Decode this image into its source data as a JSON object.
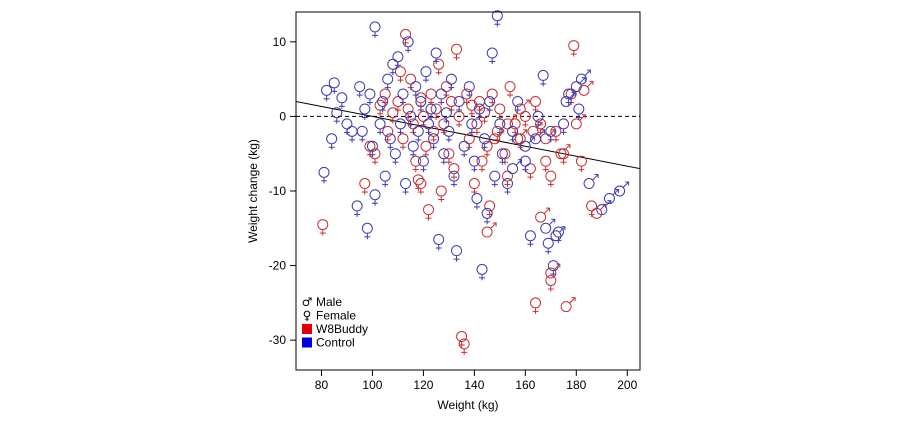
{
  "chart_data": {
    "type": "scatter",
    "xlabel": "Weight (kg)",
    "ylabel": "Weight change (kg)",
    "xlim": [
      70,
      205
    ],
    "ylim": [
      -34,
      14
    ],
    "x_ticks": [
      80,
      100,
      120,
      140,
      160,
      180,
      200
    ],
    "y_ticks": [
      10,
      0,
      -10,
      -20,
      -30
    ],
    "reference_line": {
      "y": 0,
      "style": "dashed"
    },
    "trend_line": {
      "points": [
        [
          70,
          2.0
        ],
        [
          205,
          -7.0
        ]
      ]
    },
    "legend": {
      "placement": "bottom-left",
      "entries": [
        {
          "label": "Male",
          "kind": "symbol",
          "symbol": "♂"
        },
        {
          "label": "Female",
          "kind": "symbol",
          "symbol": "♀"
        },
        {
          "label": "W8Buddy",
          "kind": "color",
          "color": "#e00000"
        },
        {
          "label": "Control",
          "kind": "color",
          "color": "#0000e0"
        }
      ]
    },
    "colors": {
      "W8Buddy": "#c83030",
      "Control": "#3c3cb4",
      "W8Buddy_swatch": "#e00000",
      "Control_swatch": "#0000e0"
    },
    "series": [
      {
        "name": "W8Buddy",
        "points": [
          {
            "x": 80.5,
            "y": -14.5,
            "sex": "F"
          },
          {
            "x": 97,
            "y": -9,
            "sex": "F"
          },
          {
            "x": 99,
            "y": -4,
            "sex": "F"
          },
          {
            "x": 103,
            "y": 1.5,
            "sex": "F"
          },
          {
            "x": 105,
            "y": 3,
            "sex": "F"
          },
          {
            "x": 106,
            "y": -2,
            "sex": "F"
          },
          {
            "x": 108,
            "y": 0.5,
            "sex": "F"
          },
          {
            "x": 110,
            "y": 2,
            "sex": "F"
          },
          {
            "x": 112,
            "y": -3,
            "sex": "F"
          },
          {
            "x": 113,
            "y": 11,
            "sex": "F"
          },
          {
            "x": 114,
            "y": 1,
            "sex": "F"
          },
          {
            "x": 115,
            "y": 5,
            "sex": "F"
          },
          {
            "x": 116,
            "y": -1,
            "sex": "F"
          },
          {
            "x": 117,
            "y": -6,
            "sex": "F"
          },
          {
            "x": 118,
            "y": -8.5,
            "sex": "F"
          },
          {
            "x": 119,
            "y": 2.5,
            "sex": "F"
          },
          {
            "x": 120,
            "y": 0,
            "sex": "F"
          },
          {
            "x": 121,
            "y": -4,
            "sex": "F"
          },
          {
            "x": 122,
            "y": -12.5,
            "sex": "F"
          },
          {
            "x": 123,
            "y": 3,
            "sex": "F"
          },
          {
            "x": 124,
            "y": -2,
            "sex": "F"
          },
          {
            "x": 125,
            "y": 1,
            "sex": "F"
          },
          {
            "x": 126,
            "y": 7,
            "sex": "F"
          },
          {
            "x": 127,
            "y": -10,
            "sex": "F"
          },
          {
            "x": 128,
            "y": -1,
            "sex": "F"
          },
          {
            "x": 129,
            "y": 4,
            "sex": "F"
          },
          {
            "x": 130,
            "y": -5,
            "sex": "F"
          },
          {
            "x": 131,
            "y": 2,
            "sex": "F"
          },
          {
            "x": 132,
            "y": -7,
            "sex": "F"
          },
          {
            "x": 133,
            "y": 9,
            "sex": "F"
          },
          {
            "x": 134,
            "y": 0,
            "sex": "F"
          },
          {
            "x": 135,
            "y": -29.5,
            "sex": "F"
          },
          {
            "x": 136,
            "y": -30.5,
            "sex": "F"
          },
          {
            "x": 137,
            "y": 3,
            "sex": "F"
          },
          {
            "x": 138,
            "y": -3,
            "sex": "F"
          },
          {
            "x": 139,
            "y": 1.5,
            "sex": "F"
          },
          {
            "x": 140,
            "y": -9,
            "sex": "F"
          },
          {
            "x": 141,
            "y": -1,
            "sex": "F"
          },
          {
            "x": 142,
            "y": 2,
            "sex": "F"
          },
          {
            "x": 143,
            "y": -6,
            "sex": "F"
          },
          {
            "x": 144,
            "y": 0.5,
            "sex": "F"
          },
          {
            "x": 145,
            "y": -4,
            "sex": "F"
          },
          {
            "x": 147,
            "y": 3,
            "sex": "F"
          },
          {
            "x": 149,
            "y": -2,
            "sex": "F"
          },
          {
            "x": 150,
            "y": 1,
            "sex": "F"
          },
          {
            "x": 152,
            "y": -5,
            "sex": "F"
          },
          {
            "x": 154,
            "y": 4,
            "sex": "F"
          },
          {
            "x": 156,
            "y": -1,
            "sex": "F"
          },
          {
            "x": 158,
            "y": -3,
            "sex": "F"
          },
          {
            "x": 160,
            "y": 0,
            "sex": "F"
          },
          {
            "x": 162,
            "y": -7,
            "sex": "F"
          },
          {
            "x": 164,
            "y": 2,
            "sex": "F"
          },
          {
            "x": 166,
            "y": -1,
            "sex": "F"
          },
          {
            "x": 168,
            "y": -6,
            "sex": "F"
          },
          {
            "x": 170,
            "y": -8,
            "sex": "F"
          },
          {
            "x": 172,
            "y": -2,
            "sex": "F"
          },
          {
            "x": 175,
            "y": -5,
            "sex": "F"
          },
          {
            "x": 178,
            "y": 3,
            "sex": "F"
          },
          {
            "x": 179,
            "y": 9.5,
            "sex": "F"
          },
          {
            "x": 182,
            "y": -6,
            "sex": "F"
          },
          {
            "x": 186,
            "y": -12,
            "sex": "F"
          },
          {
            "x": 101,
            "y": -5,
            "sex": "F"
          },
          {
            "x": 111,
            "y": 6,
            "sex": "F"
          },
          {
            "x": 119,
            "y": -9,
            "sex": "F"
          },
          {
            "x": 146,
            "y": -12,
            "sex": "F"
          },
          {
            "x": 153,
            "y": -8,
            "sex": "F"
          },
          {
            "x": 164,
            "y": -25,
            "sex": "F"
          },
          {
            "x": 170,
            "y": -22,
            "sex": "F"
          },
          {
            "x": 148,
            "y": -3,
            "sex": "M"
          },
          {
            "x": 153,
            "y": -1,
            "sex": "M"
          },
          {
            "x": 158,
            "y": 1,
            "sex": "M"
          },
          {
            "x": 163,
            "y": -2,
            "sex": "M"
          },
          {
            "x": 166,
            "y": -13.5,
            "sex": "M"
          },
          {
            "x": 168,
            "y": -3,
            "sex": "M"
          },
          {
            "x": 170,
            "y": -21,
            "sex": "M"
          },
          {
            "x": 174,
            "y": -5,
            "sex": "M"
          },
          {
            "x": 176,
            "y": -25.5,
            "sex": "M"
          },
          {
            "x": 180,
            "y": -1,
            "sex": "M"
          },
          {
            "x": 183,
            "y": 3.5,
            "sex": "M"
          },
          {
            "x": 188,
            "y": -13,
            "sex": "M"
          },
          {
            "x": 145,
            "y": -15.5,
            "sex": "M"
          },
          {
            "x": 157,
            "y": -3,
            "sex": "M"
          }
        ]
      },
      {
        "name": "Control",
        "points": [
          {
            "x": 81,
            "y": -7.5,
            "sex": "F"
          },
          {
            "x": 82,
            "y": 3.5,
            "sex": "F"
          },
          {
            "x": 85,
            "y": 4.5,
            "sex": "F"
          },
          {
            "x": 86,
            "y": 0.5,
            "sex": "F"
          },
          {
            "x": 88,
            "y": 2.5,
            "sex": "F"
          },
          {
            "x": 90,
            "y": -1,
            "sex": "F"
          },
          {
            "x": 92,
            "y": -2,
            "sex": "F"
          },
          {
            "x": 94,
            "y": -12,
            "sex": "F"
          },
          {
            "x": 95,
            "y": 4,
            "sex": "F"
          },
          {
            "x": 96,
            "y": -2,
            "sex": "F"
          },
          {
            "x": 97,
            "y": 1,
            "sex": "F"
          },
          {
            "x": 98,
            "y": -15,
            "sex": "F"
          },
          {
            "x": 99,
            "y": 3,
            "sex": "F"
          },
          {
            "x": 100,
            "y": -4,
            "sex": "F"
          },
          {
            "x": 101,
            "y": 12,
            "sex": "F"
          },
          {
            "x": 101,
            "y": -10.5,
            "sex": "F"
          },
          {
            "x": 103,
            "y": -1,
            "sex": "F"
          },
          {
            "x": 104,
            "y": 2,
            "sex": "F"
          },
          {
            "x": 105,
            "y": -8,
            "sex": "F"
          },
          {
            "x": 106,
            "y": 5,
            "sex": "F"
          },
          {
            "x": 107,
            "y": -3,
            "sex": "F"
          },
          {
            "x": 108,
            "y": 7,
            "sex": "F"
          },
          {
            "x": 109,
            "y": -5,
            "sex": "F"
          },
          {
            "x": 110,
            "y": 8,
            "sex": "F"
          },
          {
            "x": 111,
            "y": -1,
            "sex": "F"
          },
          {
            "x": 112,
            "y": 3,
            "sex": "F"
          },
          {
            "x": 113,
            "y": -9,
            "sex": "F"
          },
          {
            "x": 114,
            "y": 10,
            "sex": "F"
          },
          {
            "x": 115,
            "y": 0,
            "sex": "F"
          },
          {
            "x": 116,
            "y": -4,
            "sex": "F"
          },
          {
            "x": 117,
            "y": 4,
            "sex": "F"
          },
          {
            "x": 118,
            "y": -2,
            "sex": "F"
          },
          {
            "x": 119,
            "y": 2,
            "sex": "F"
          },
          {
            "x": 120,
            "y": -6,
            "sex": "F"
          },
          {
            "x": 121,
            "y": 6,
            "sex": "F"
          },
          {
            "x": 122,
            "y": -1,
            "sex": "F"
          },
          {
            "x": 123,
            "y": 1,
            "sex": "F"
          },
          {
            "x": 124,
            "y": -3,
            "sex": "F"
          },
          {
            "x": 125,
            "y": 8.5,
            "sex": "F"
          },
          {
            "x": 126,
            "y": -16.5,
            "sex": "F"
          },
          {
            "x": 127,
            "y": 3,
            "sex": "F"
          },
          {
            "x": 128,
            "y": -5,
            "sex": "F"
          },
          {
            "x": 129,
            "y": 0.5,
            "sex": "F"
          },
          {
            "x": 130,
            "y": -2,
            "sex": "F"
          },
          {
            "x": 131,
            "y": 5,
            "sex": "F"
          },
          {
            "x": 132,
            "y": -8,
            "sex": "F"
          },
          {
            "x": 133,
            "y": -18,
            "sex": "F"
          },
          {
            "x": 134,
            "y": 2,
            "sex": "F"
          },
          {
            "x": 136,
            "y": -4,
            "sex": "F"
          },
          {
            "x": 138,
            "y": 4,
            "sex": "F"
          },
          {
            "x": 140,
            "y": -6,
            "sex": "F"
          },
          {
            "x": 141,
            "y": -11,
            "sex": "F"
          },
          {
            "x": 142,
            "y": 1,
            "sex": "F"
          },
          {
            "x": 143,
            "y": -20.5,
            "sex": "F"
          },
          {
            "x": 144,
            "y": -3,
            "sex": "F"
          },
          {
            "x": 146,
            "y": 2,
            "sex": "F"
          },
          {
            "x": 147,
            "y": 8.5,
            "sex": "F"
          },
          {
            "x": 148,
            "y": -8,
            "sex": "F"
          },
          {
            "x": 149,
            "y": 13.5,
            "sex": "F"
          },
          {
            "x": 150,
            "y": -1,
            "sex": "F"
          },
          {
            "x": 151,
            "y": -5,
            "sex": "F"
          },
          {
            "x": 153,
            "y": -9,
            "sex": "F"
          },
          {
            "x": 155,
            "y": -2,
            "sex": "F"
          },
          {
            "x": 157,
            "y": 2,
            "sex": "F"
          },
          {
            "x": 160,
            "y": -6,
            "sex": "F"
          },
          {
            "x": 162,
            "y": -16,
            "sex": "F"
          },
          {
            "x": 165,
            "y": 0,
            "sex": "F"
          },
          {
            "x": 167,
            "y": 5.5,
            "sex": "F"
          },
          {
            "x": 169,
            "y": -17,
            "sex": "F"
          },
          {
            "x": 170,
            "y": -2,
            "sex": "F"
          },
          {
            "x": 171,
            "y": -20,
            "sex": "F"
          },
          {
            "x": 173,
            "y": -15.5,
            "sex": "F"
          },
          {
            "x": 175,
            "y": -1,
            "sex": "F"
          },
          {
            "x": 177,
            "y": 3,
            "sex": "F"
          },
          {
            "x": 181,
            "y": 1,
            "sex": "F"
          },
          {
            "x": 84,
            "y": -3,
            "sex": "F"
          },
          {
            "x": 139,
            "y": -1,
            "sex": "F"
          },
          {
            "x": 145,
            "y": -13,
            "sex": "F"
          },
          {
            "x": 168,
            "y": -15,
            "sex": "M"
          },
          {
            "x": 172,
            "y": -16,
            "sex": "M"
          },
          {
            "x": 176,
            "y": 2,
            "sex": "M"
          },
          {
            "x": 180,
            "y": 4,
            "sex": "M"
          },
          {
            "x": 182,
            "y": 5,
            "sex": "M"
          },
          {
            "x": 185,
            "y": -9,
            "sex": "M"
          },
          {
            "x": 190,
            "y": -12.5,
            "sex": "M"
          },
          {
            "x": 193,
            "y": -11,
            "sex": "M"
          },
          {
            "x": 197,
            "y": -10,
            "sex": "M"
          },
          {
            "x": 155,
            "y": -7,
            "sex": "M"
          },
          {
            "x": 160,
            "y": -4,
            "sex": "M"
          },
          {
            "x": 164,
            "y": -3,
            "sex": "M"
          }
        ]
      }
    ]
  }
}
